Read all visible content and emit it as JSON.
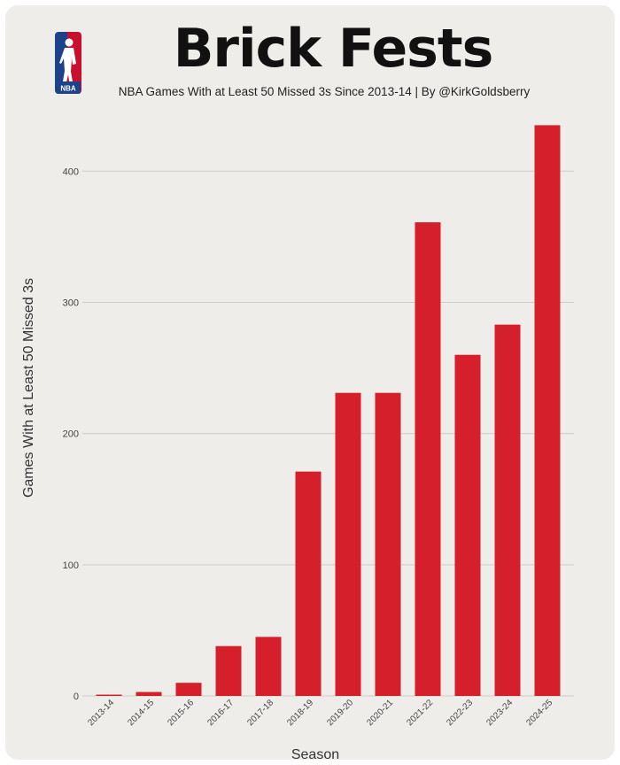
{
  "chart_data": {
    "type": "bar",
    "title": "Brick Fests",
    "subtitle": "NBA Games With at Least 50 Missed 3s Since 2013-14 | By @KirkGoldsberry",
    "xlabel": "Season",
    "ylabel": "Games With at Least 50 Missed 3s",
    "ylim": [
      0,
      440
    ],
    "yticks": [
      0,
      100,
      200,
      300,
      400
    ],
    "grid": true,
    "categories": [
      "2013-14",
      "2014-15",
      "2015-16",
      "2016-17",
      "2017-18",
      "2018-19",
      "2019-20",
      "2020-21",
      "2021-22",
      "2022-23",
      "2023-24",
      "2024-25"
    ],
    "values": [
      1,
      3,
      10,
      38,
      45,
      171,
      231,
      231,
      361,
      260,
      283,
      435
    ],
    "bar_color": "#d51f2a"
  },
  "logo": {
    "text": "NBA",
    "colors": {
      "blue": "#1d428a",
      "red": "#c8102e"
    }
  }
}
